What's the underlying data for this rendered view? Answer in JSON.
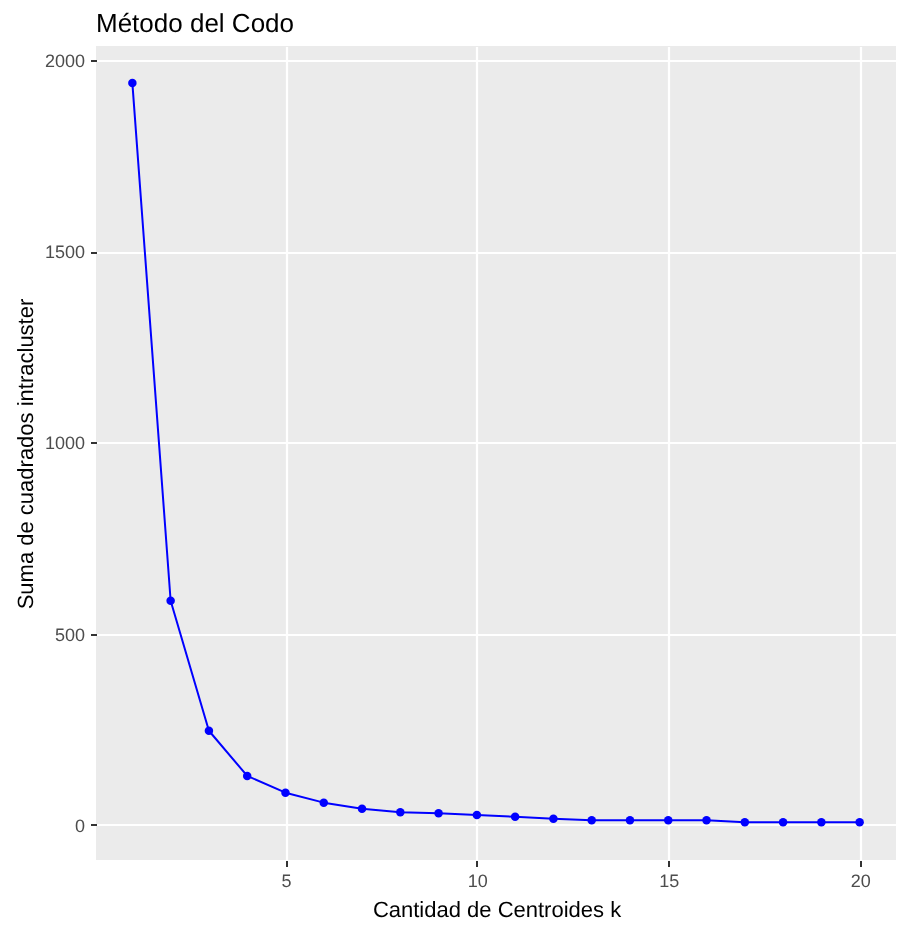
{
  "chart_data": {
    "type": "line",
    "title": "Método del Codo",
    "xlabel": "Cantidad de Centroides k",
    "ylabel": "Suma de cuadrados intracluster",
    "x": [
      1,
      2,
      3,
      4,
      5,
      6,
      7,
      8,
      9,
      10,
      11,
      12,
      13,
      14,
      15,
      16,
      17,
      18,
      19,
      20
    ],
    "series": [
      {
        "color": "#0000ff",
        "values": [
          1940,
          586,
          246,
          128,
          84,
          58,
          42,
          33,
          30,
          26,
          21,
          16,
          12,
          12,
          12,
          12,
          7,
          7,
          7,
          7
        ]
      }
    ],
    "xlim": [
      0.05,
      20.95
    ],
    "xticks": [
      5,
      10,
      15,
      20
    ],
    "ylim": [
      -92,
      2037
    ],
    "yticks": [
      0,
      500,
      1000,
      1500,
      2000
    ],
    "grid": true,
    "legend": false,
    "marker": "circle",
    "line_style": "solid"
  }
}
